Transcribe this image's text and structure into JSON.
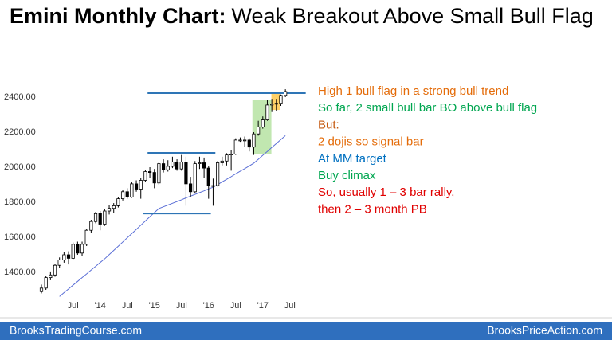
{
  "chart_data": {
    "type": "candlestick",
    "title": [
      "Emini Monthly Chart:",
      "Weak Breakout Above Small Bull Flag"
    ],
    "categories": [
      null,
      null,
      null,
      null,
      null,
      null,
      null,
      "Jul",
      null,
      null,
      null,
      null,
      null,
      "'14",
      null,
      null,
      null,
      null,
      null,
      "Jul",
      null,
      null,
      null,
      null,
      null,
      "'15",
      null,
      null,
      null,
      null,
      null,
      "Jul",
      null,
      null,
      null,
      null,
      null,
      "'16",
      null,
      null,
      null,
      null,
      null,
      "Jul",
      null,
      null,
      null,
      null,
      null,
      "'17",
      null,
      null,
      null,
      null,
      null,
      "Jul"
    ],
    "open": [
      1290,
      1310,
      1370,
      1385,
      1440,
      1470,
      1500,
      1480,
      1560,
      1510,
      1560,
      1640,
      1690,
      1735,
      1675,
      1750,
      1765,
      1780,
      1820,
      1860,
      1830,
      1905,
      1875,
      1925,
      1975,
      1970,
      1910,
      2020,
      1985,
      2005,
      2030,
      1990,
      2030,
      1905,
      1860,
      2020,
      2025,
      1995,
      1895,
      1895,
      2025,
      2035,
      2070,
      2075,
      2155,
      2155,
      2155,
      2115,
      2190,
      2230,
      2270,
      2355,
      2360,
      2365,
      2410,
      null
    ],
    "high": [
      1330,
      1380,
      1405,
      1450,
      1485,
      1515,
      1520,
      1570,
      1575,
      1575,
      1650,
      1700,
      1745,
      1750,
      1760,
      1785,
      1795,
      1830,
      1870,
      1880,
      1915,
      1925,
      1940,
      1985,
      2000,
      1990,
      2030,
      2045,
      2040,
      2060,
      2045,
      2070,
      2060,
      1945,
      2035,
      2060,
      2055,
      2005,
      1935,
      2035,
      2060,
      2080,
      2100,
      2165,
      2170,
      2175,
      2165,
      2200,
      2265,
      2290,
      2385,
      2390,
      2390,
      2415,
      2445,
      null
    ],
    "low": [
      1280,
      1300,
      1355,
      1375,
      1425,
      1455,
      1445,
      1475,
      1500,
      1495,
      1550,
      1625,
      1680,
      1640,
      1665,
      1730,
      1740,
      1770,
      1810,
      1820,
      1825,
      1860,
      1820,
      1915,
      1940,
      1880,
      1900,
      1970,
      1975,
      1995,
      1980,
      1980,
      1780,
      1830,
      1850,
      1990,
      1940,
      1820,
      1780,
      1890,
      2010,
      2010,
      1980,
      2070,
      2145,
      2115,
      2090,
      2070,
      2180,
      2220,
      2265,
      2315,
      2320,
      2350,
      2400,
      null
    ],
    "close": [
      1310,
      1370,
      1385,
      1440,
      1470,
      1500,
      1480,
      1560,
      1510,
      1560,
      1640,
      1690,
      1735,
      1675,
      1750,
      1765,
      1780,
      1820,
      1860,
      1830,
      1905,
      1875,
      1925,
      1975,
      1970,
      1910,
      2020,
      1985,
      2005,
      2030,
      1990,
      2030,
      1905,
      1860,
      2020,
      2025,
      1995,
      1895,
      1895,
      2025,
      2035,
      2070,
      2075,
      2155,
      2155,
      2155,
      2115,
      2190,
      2230,
      2270,
      2355,
      2360,
      2365,
      2410,
      2432,
      null
    ],
    "moving_average": {
      "color": "#5b6fd6",
      "values": [
        null,
        null,
        null,
        null,
        1262,
        1284,
        1305,
        1327,
        1348,
        1370,
        1391,
        1413,
        1434,
        1456,
        1477,
        1501,
        1525,
        1549,
        1573,
        1597,
        1621,
        1645,
        1669,
        1693,
        1717,
        1741,
        1764,
        1774,
        1784,
        1794,
        1804,
        1814,
        1825,
        1835,
        1845,
        1855,
        1865,
        1876,
        1886,
        1901,
        1916,
        1931,
        1946,
        1962,
        1977,
        1992,
        2007,
        2023,
        2045,
        2068,
        2090,
        2113,
        2135,
        2158,
        2180,
        null
      ]
    },
    "bull_color": "#ffffff",
    "bear_color": "#000000",
    "xlim": [
      -3,
      60.5
    ],
    "ylim": [
      1280,
      2520
    ],
    "yticks": [
      {
        "value": 1400,
        "label": "1400.00"
      },
      {
        "value": 1600,
        "label": "1600.00"
      },
      {
        "value": 1800,
        "label": "1800.00"
      },
      {
        "value": 2000,
        "label": "2000.00"
      },
      {
        "value": 2200,
        "label": "2200.00"
      },
      {
        "value": 2400,
        "label": "2400.00"
      }
    ],
    "grid": false,
    "reference_lines": [
      {
        "value": 2423,
        "from": 23.5,
        "to": 58.5,
        "color": "#2e75b6"
      },
      {
        "value": 2082,
        "from": 23.5,
        "to": 38.5,
        "color": "#2e75b6"
      },
      {
        "value": 1736,
        "from": 22.5,
        "to": 37.5,
        "color": "#2e75b6"
      }
    ],
    "boxes": [
      {
        "from": 46.7,
        "to": 50.9,
        "low": 2077,
        "high": 2386,
        "color": "#b6e3a2"
      },
      {
        "from": 50.9,
        "to": 52.9,
        "low": 2327,
        "high": 2418,
        "color": "#ffc94d"
      }
    ],
    "annotations": [
      {
        "text": "High 1 bull flag in a strong bull trend",
        "color": "#e46c0a"
      },
      {
        "text": "So far, 2 small bull bar BO above bull flag",
        "color": "#00a650"
      },
      {
        "text": "But:",
        "color": "#c55a11"
      },
      {
        "text": "2 dojis so signal bar",
        "color": "#e46c0a"
      },
      {
        "text": "At MM target",
        "color": "#0070c0"
      },
      {
        "text": "Buy climax",
        "color": "#00a650"
      },
      {
        "text": "So, usually 1 – 3 bar rally,",
        "color": "#e00000"
      },
      {
        "text": "then 2 – 3  month PB",
        "color": "#e00000"
      }
    ]
  },
  "footer": {
    "left": "BrooksTradingCourse.com",
    "right": "BrooksPriceAction.com"
  }
}
